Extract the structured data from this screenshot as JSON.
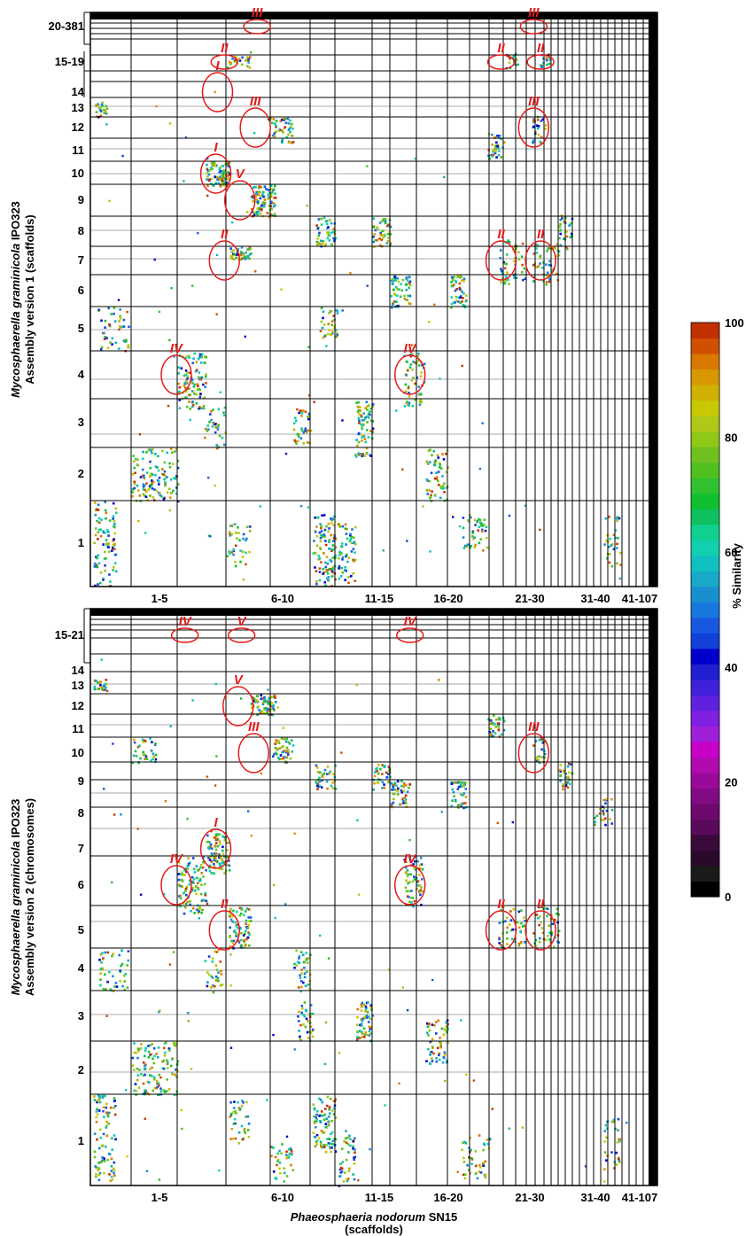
{
  "chart_data": [
    {
      "type": "scatter",
      "panel": "top",
      "ylabel_line1_italic": "Mycosphaerella graminicola",
      "ylabel_line1_rest": "IPO323",
      "ylabel_line2": "Assembly version 1  (scaffolds)",
      "x_tick_labels": [
        "1-5",
        "6-10",
        "11-15",
        "16-20",
        "21-30",
        "31-40",
        "41-107"
      ],
      "y_tick_labels": [
        "1",
        "2",
        "3",
        "4",
        "5",
        "6",
        "7",
        "8",
        "9",
        "10",
        "11",
        "12",
        "13",
        "14",
        "15-19",
        "20-381"
      ],
      "annotations": [
        {
          "label": "III",
          "x": 9.7,
          "y": 15.9
        },
        {
          "label": "III",
          "x": 25.8,
          "y": 15.9
        },
        {
          "label": "II",
          "x": 7.8,
          "y": 15.1
        },
        {
          "label": "II",
          "x": 23.9,
          "y": 15.1
        },
        {
          "label": "II",
          "x": 26.2,
          "y": 15.1
        },
        {
          "label": "I",
          "x": 7.4,
          "y": 14.2
        },
        {
          "label": "III",
          "x": 9.6,
          "y": 12.0
        },
        {
          "label": "III",
          "x": 25.8,
          "y": 12.0
        },
        {
          "label": "I",
          "x": 7.3,
          "y": 10.0
        },
        {
          "label": "V",
          "x": 8.7,
          "y": 9.1
        },
        {
          "label": "II",
          "x": 7.8,
          "y": 7.0
        },
        {
          "label": "II",
          "x": 23.9,
          "y": 7.0
        },
        {
          "label": "II",
          "x": 26.2,
          "y": 7.0
        },
        {
          "label": "IV",
          "x": 5.0,
          "y": 4.0
        },
        {
          "label": "IV",
          "x": 18.6,
          "y": 4.0
        }
      ]
    },
    {
      "type": "scatter",
      "panel": "bottom",
      "ylabel_line1_italic": "Mycosphaerella graminicola",
      "ylabel_line1_rest": "IPO323",
      "ylabel_line2": "Assembly version 2  (chromosomes)",
      "xlabel_italic": "Phaeosphaeria nodorum",
      "xlabel_rest": "SN15",
      "xlabel_line2": "(scaffolds)",
      "x_tick_labels": [
        "1-5",
        "6-10",
        "11-15",
        "16-20",
        "21-30",
        "31-40",
        "41-107"
      ],
      "y_tick_labels": [
        "1",
        "2",
        "3",
        "4",
        "5",
        "6",
        "7",
        "8",
        "9",
        "10",
        "11",
        "12",
        "13",
        "14",
        "15-21"
      ],
      "annotations": [
        {
          "label": "V",
          "x": 8.8,
          "y": 15.9
        },
        {
          "label": "IV",
          "x": 5.5,
          "y": 15.1
        },
        {
          "label": "IV",
          "x": 18.6,
          "y": 15.1
        },
        {
          "label": "V",
          "x": 8.6,
          "y": 12.0
        },
        {
          "label": "III",
          "x": 9.5,
          "y": 10.0
        },
        {
          "label": "III",
          "x": 25.8,
          "y": 10.0
        },
        {
          "label": "I",
          "x": 7.3,
          "y": 7.0
        },
        {
          "label": "IV",
          "x": 5.0,
          "y": 6.0
        },
        {
          "label": "IV",
          "x": 18.6,
          "y": 6.0
        },
        {
          "label": "II",
          "x": 7.8,
          "y": 5.0
        },
        {
          "label": "II",
          "x": 23.9,
          "y": 5.0
        },
        {
          "label": "II",
          "x": 26.2,
          "y": 5.0
        }
      ]
    }
  ],
  "colorbar": {
    "label": "% Similarity",
    "ticks": [
      "0",
      "20",
      "40",
      "60",
      "80",
      "100"
    ],
    "colors": [
      "#000000",
      "#1a1a1a",
      "#2a0a2a",
      "#3a0a3a",
      "#5a0a5a",
      "#6e0a6e",
      "#820a82",
      "#9a0a9a",
      "#b00ab0",
      "#c800c8",
      "#a020d8",
      "#8020e0",
      "#6020e0",
      "#4020d8",
      "#2020d0",
      "#0000cc",
      "#1040d8",
      "#1858e0",
      "#1878e0",
      "#1890d0",
      "#18a8c8",
      "#10c0c0",
      "#10d0b0",
      "#10d090",
      "#10c060",
      "#10c030",
      "#30c030",
      "#50c020",
      "#70c020",
      "#90c818",
      "#b0c818",
      "#c8c800",
      "#d0b000",
      "#d89800",
      "#d87800",
      "#d05000",
      "#c03000"
    ]
  }
}
